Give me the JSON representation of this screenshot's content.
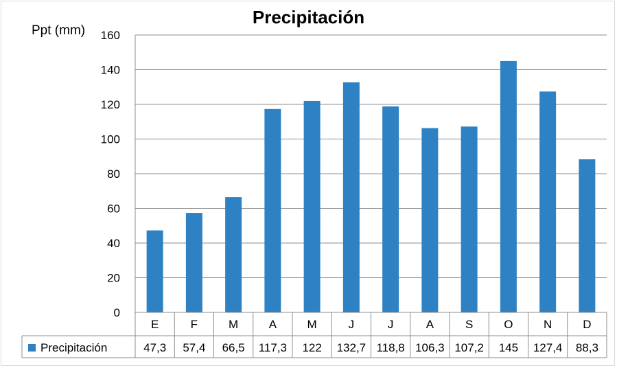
{
  "chart_data": {
    "type": "bar",
    "title": "Precipitación",
    "xlabel": "",
    "ylabel": "Ppt (mm)",
    "categories": [
      "E",
      "F",
      "M",
      "A",
      "M",
      "J",
      "J",
      "A",
      "S",
      "O",
      "N",
      "D"
    ],
    "series": [
      {
        "name": "Precipitación",
        "color": "#2e82c4",
        "values": [
          47.3,
          57.4,
          66.5,
          117.3,
          122,
          132.7,
          118.8,
          106.3,
          107.2,
          145,
          127.4,
          88.3
        ],
        "labels": [
          "47,3",
          "57,4",
          "66,5",
          "117,3",
          "122",
          "132,7",
          "118,8",
          "106,3",
          "107,2",
          "145",
          "127,4",
          "88,3"
        ]
      }
    ],
    "ylim": [
      0,
      160
    ],
    "yticks": [
      "0",
      "20",
      "40",
      "60",
      "80",
      "100",
      "120",
      "140",
      "160"
    ],
    "grid": true,
    "legend": "data-table"
  }
}
